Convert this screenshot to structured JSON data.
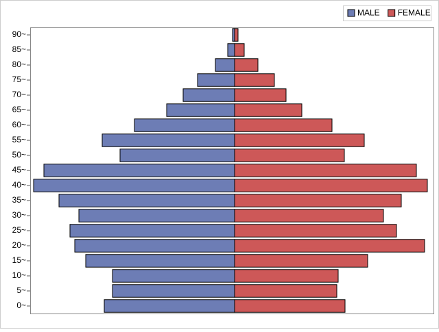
{
  "chart_data": {
    "type": "bar",
    "orientation": "horizontal",
    "stacked": true,
    "categories": [
      "0~",
      "5~",
      "10~",
      "15~",
      "20~",
      "25~",
      "30~",
      "35~",
      "40~",
      "45~",
      "50~",
      "55~",
      "60~",
      "65~",
      "70~",
      "75~",
      "80~",
      "85~",
      "90~"
    ],
    "series": [
      {
        "name": "MALE",
        "color": "#6d7db5",
        "values": [
          -190,
          -178,
          -178,
          -217,
          -233,
          -240,
          -227,
          -256,
          -293,
          -278,
          -167,
          -193,
          -146,
          -99,
          -75,
          -54,
          -28,
          -10,
          -3
        ]
      },
      {
        "name": "FEMALE",
        "color": "#cd5858",
        "values": [
          161,
          149,
          151,
          194,
          277,
          236,
          217,
          243,
          281,
          265,
          160,
          189,
          142,
          98,
          75,
          58,
          34,
          14,
          5
        ]
      }
    ],
    "xlim": [
      -298,
      290
    ],
    "legend": "top-right"
  }
}
